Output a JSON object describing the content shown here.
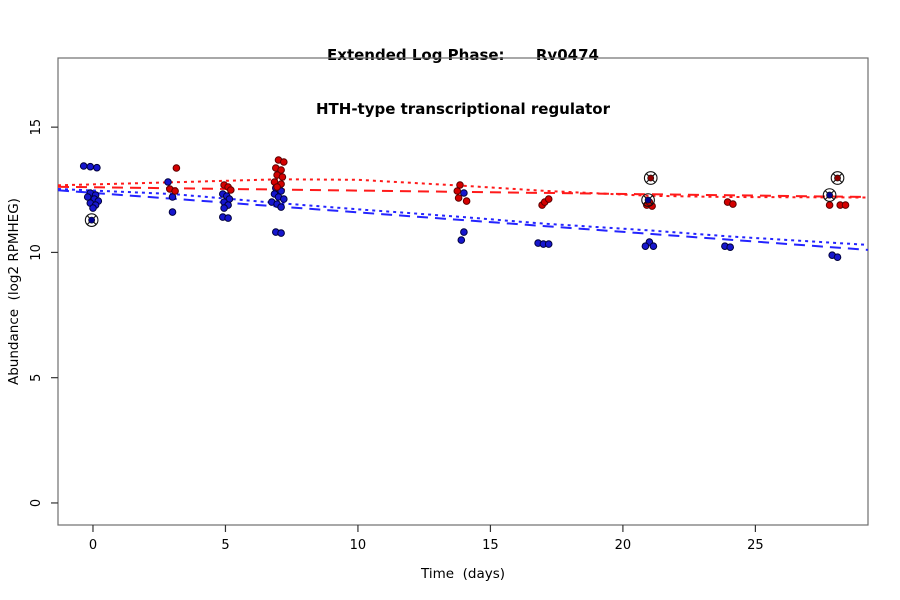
{
  "chart_data": {
    "type": "scatter",
    "title": "Extended Log Phase:      Rv0474",
    "subtitle": "HTH-type transcriptional regulator",
    "xlabel": "Time  (days)",
    "ylabel": "Abundance  (log2 RPMHEG)",
    "xlim": [
      -1.32,
      29.25
    ],
    "ylim": [
      -0.88,
      17.76
    ],
    "xticks": [
      0,
      5,
      10,
      15,
      20,
      25
    ],
    "yticks": [
      0,
      5,
      10,
      15
    ],
    "grid": false,
    "legend": "none",
    "box_color": "#6e6e6e",
    "tick_color": "#333333",
    "series": [
      {
        "name": "blue-condition",
        "fill": "#1616CE",
        "edge": "#00003C",
        "outlier_fill": "#00008F",
        "points": [
          [
            -0.35,
            13.45
          ],
          [
            -0.1,
            13.42
          ],
          [
            0.15,
            13.38
          ],
          [
            -0.1,
            12.37
          ],
          [
            0.1,
            12.29
          ],
          [
            -0.2,
            12.21
          ],
          [
            0.05,
            12.13
          ],
          [
            0.2,
            12.05
          ],
          [
            -0.1,
            11.97
          ],
          [
            0.1,
            11.89
          ],
          [
            0.0,
            11.77
          ],
          [
            2.83,
            12.81
          ],
          [
            3.0,
            12.21
          ],
          [
            3.0,
            11.61
          ],
          [
            4.9,
            12.33
          ],
          [
            5.05,
            12.25
          ],
          [
            5.15,
            12.13
          ],
          [
            4.95,
            12.01
          ],
          [
            5.1,
            11.89
          ],
          [
            4.95,
            11.77
          ],
          [
            4.9,
            11.41
          ],
          [
            5.1,
            11.37
          ],
          [
            6.9,
            12.57
          ],
          [
            7.1,
            12.45
          ],
          [
            6.85,
            12.33
          ],
          [
            7.0,
            12.21
          ],
          [
            7.2,
            12.13
          ],
          [
            6.75,
            12.01
          ],
          [
            6.95,
            11.93
          ],
          [
            7.1,
            11.81
          ],
          [
            6.9,
            10.81
          ],
          [
            7.1,
            10.77
          ],
          [
            14.0,
            12.37
          ],
          [
            14.0,
            10.81
          ],
          [
            13.9,
            10.49
          ],
          [
            16.8,
            10.37
          ],
          [
            17.0,
            10.33
          ],
          [
            17.2,
            10.33
          ],
          [
            21.0,
            10.41
          ],
          [
            20.85,
            10.25
          ],
          [
            21.15,
            10.25
          ],
          [
            23.85,
            10.25
          ],
          [
            24.05,
            10.21
          ],
          [
            27.9,
            9.89
          ],
          [
            28.1,
            9.81
          ]
        ]
      },
      {
        "name": "red-condition",
        "fill": "#D40000",
        "edge": "#5A0000",
        "outlier_fill": "#8F0000",
        "points": [
          [
            3.15,
            13.37
          ],
          [
            2.9,
            12.53
          ],
          [
            3.1,
            12.45
          ],
          [
            4.95,
            12.69
          ],
          [
            5.1,
            12.61
          ],
          [
            5.2,
            12.49
          ],
          [
            7.0,
            13.69
          ],
          [
            7.2,
            13.61
          ],
          [
            6.9,
            13.37
          ],
          [
            7.1,
            13.29
          ],
          [
            6.95,
            13.09
          ],
          [
            7.15,
            13.01
          ],
          [
            6.85,
            12.81
          ],
          [
            7.1,
            12.73
          ],
          [
            6.95,
            12.61
          ],
          [
            13.85,
            12.69
          ],
          [
            13.75,
            12.45
          ],
          [
            13.8,
            12.17
          ],
          [
            14.1,
            12.05
          ],
          [
            16.95,
            11.89
          ],
          [
            17.05,
            12.01
          ],
          [
            17.2,
            12.13
          ],
          [
            20.9,
            11.89
          ],
          [
            21.1,
            11.85
          ],
          [
            21.0,
            12.01
          ],
          [
            23.95,
            12.01
          ],
          [
            24.15,
            11.93
          ],
          [
            27.8,
            11.89
          ],
          [
            28.2,
            11.89
          ],
          [
            28.4,
            11.89
          ]
        ]
      }
    ],
    "outlier_points": [
      {
        "series": "blue-condition",
        "x": -0.05,
        "y": 11.29
      },
      {
        "series": "red-condition",
        "x": 21.05,
        "y": 12.97
      },
      {
        "series": "blue-condition",
        "x": 20.95,
        "y": 12.09
      },
      {
        "series": "red-condition",
        "x": 28.1,
        "y": 12.97
      },
      {
        "series": "blue-condition",
        "x": 27.8,
        "y": 12.29
      }
    ],
    "trend_lines": [
      {
        "name": "red-linear-fit",
        "style": "dashed",
        "color": "#FF1A1A",
        "points": [
          [
            -1.32,
            12.62
          ],
          [
            29.25,
            12.21
          ]
        ]
      },
      {
        "name": "red-smooth-fit",
        "style": "dotted",
        "color": "#FF1A1A",
        "points": [
          [
            -1.32,
            12.68
          ],
          [
            3,
            12.8
          ],
          [
            7,
            12.92
          ],
          [
            10,
            12.9
          ],
          [
            14,
            12.66
          ],
          [
            17,
            12.46
          ],
          [
            21,
            12.26
          ],
          [
            24,
            12.21
          ],
          [
            29.25,
            12.19
          ]
        ]
      },
      {
        "name": "blue-linear-fit",
        "style": "dashed",
        "color": "#2424FF",
        "points": [
          [
            -1.32,
            12.48
          ],
          [
            29.25,
            10.1
          ]
        ]
      },
      {
        "name": "blue-smooth-fit",
        "style": "dotted",
        "color": "#2424FF",
        "points": [
          [
            -1.32,
            12.53
          ],
          [
            3,
            12.33
          ],
          [
            7,
            11.97
          ],
          [
            10,
            11.72
          ],
          [
            14,
            11.41
          ],
          [
            17,
            11.15
          ],
          [
            21,
            10.88
          ],
          [
            24,
            10.64
          ],
          [
            29.25,
            10.3
          ]
        ]
      }
    ]
  }
}
